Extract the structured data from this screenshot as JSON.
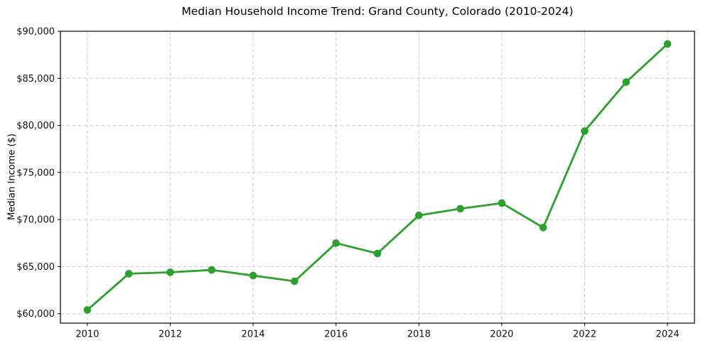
{
  "chart_data": {
    "type": "line",
    "title": "Median Household Income Trend: Grand County, Colorado (2010-2024)",
    "xlabel": "",
    "ylabel": "Median Income ($)",
    "x": [
      2010,
      2011,
      2012,
      2013,
      2014,
      2015,
      2016,
      2017,
      2018,
      2019,
      2020,
      2021,
      2022,
      2023,
      2024
    ],
    "series": [
      {
        "name": "Median Household Income",
        "color": "#2ca02c",
        "marker": "circle",
        "values": [
          60400,
          64250,
          64400,
          64650,
          64050,
          63450,
          67500,
          66400,
          70450,
          71150,
          71750,
          69150,
          79400,
          84600,
          88650
        ]
      }
    ],
    "xlim": [
      2009.35,
      2024.65
    ],
    "ylim": [
      59000,
      90000
    ],
    "x_ticks": [
      2010,
      2012,
      2014,
      2016,
      2018,
      2020,
      2022,
      2024
    ],
    "x_tick_labels": [
      "2010",
      "2012",
      "2014",
      "2016",
      "2018",
      "2020",
      "2022",
      "2024"
    ],
    "y_ticks": [
      60000,
      65000,
      70000,
      75000,
      80000,
      85000,
      90000
    ],
    "y_tick_labels": [
      "$60,000",
      "$65,000",
      "$70,000",
      "$75,000",
      "$80,000",
      "$85,000",
      "$90,000"
    ],
    "grid": true,
    "grid_color": "#cccccc",
    "grid_style": "dashed",
    "axes_edge_color": "#000000",
    "plot_bg_color": "#ffffff",
    "legend": "none"
  }
}
